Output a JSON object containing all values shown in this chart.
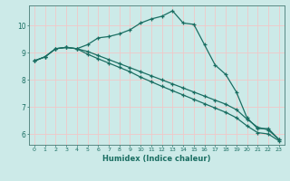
{
  "xlabel": "Humidex (Indice chaleur)",
  "xlim": [
    -0.5,
    23.5
  ],
  "ylim": [
    5.6,
    10.75
  ],
  "yticks": [
    6,
    7,
    8,
    9,
    10
  ],
  "xticks": [
    0,
    1,
    2,
    3,
    4,
    5,
    6,
    7,
    8,
    9,
    10,
    11,
    12,
    13,
    14,
    15,
    16,
    17,
    18,
    19,
    20,
    21,
    22,
    23
  ],
  "bg_color": "#cceae8",
  "plot_bg_color": "#cceae8",
  "line_color": "#1a6e62",
  "grid_color": "#f0c8c8",
  "spine_color": "#5a8a84",
  "line1_x": [
    0,
    1,
    2,
    3,
    4,
    5,
    6,
    7,
    8,
    9,
    10,
    11,
    12,
    13,
    14,
    15,
    16,
    17,
    18,
    19,
    20,
    21,
    22,
    23
  ],
  "line1_y": [
    8.7,
    8.85,
    9.15,
    9.2,
    9.15,
    9.3,
    9.55,
    9.6,
    9.7,
    9.85,
    10.1,
    10.25,
    10.35,
    10.55,
    10.1,
    10.05,
    9.3,
    8.55,
    8.2,
    7.55,
    6.6,
    6.2,
    6.2,
    5.8
  ],
  "line2_x": [
    0,
    1,
    2,
    3,
    4,
    5,
    6,
    7,
    8,
    9,
    10,
    11,
    12,
    13,
    14,
    15,
    16,
    17,
    18,
    19,
    20,
    21,
    22,
    23
  ],
  "line2_y": [
    8.7,
    8.85,
    9.15,
    9.2,
    9.15,
    9.05,
    8.9,
    8.75,
    8.6,
    8.45,
    8.3,
    8.15,
    8.0,
    7.85,
    7.7,
    7.55,
    7.4,
    7.25,
    7.1,
    6.9,
    6.55,
    6.25,
    6.15,
    5.8
  ],
  "line3_x": [
    0,
    1,
    2,
    3,
    4,
    5,
    6,
    7,
    8,
    9,
    10,
    11,
    12,
    13,
    14,
    15,
    16,
    17,
    18,
    19,
    20,
    21,
    22,
    23
  ],
  "line3_y": [
    8.7,
    8.85,
    9.15,
    9.2,
    9.15,
    8.95,
    8.78,
    8.62,
    8.46,
    8.3,
    8.1,
    7.93,
    7.76,
    7.6,
    7.44,
    7.28,
    7.12,
    6.96,
    6.8,
    6.6,
    6.3,
    6.05,
    6.0,
    5.75
  ]
}
